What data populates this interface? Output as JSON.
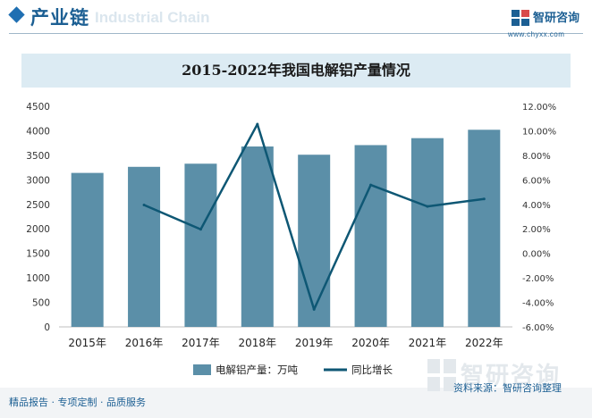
{
  "header": {
    "section_title": "产业链",
    "section_watermark": "Industrial Chain",
    "logo_text": "智研咨询",
    "logo_url": "www.chyxx.com"
  },
  "watermark": {
    "text": "智研咨询"
  },
  "footer": {
    "left_text": "精品报告 · 专项定制 · 品质服务",
    "source_text": "资料来源：智研咨询整理"
  },
  "colors": {
    "bar": "#5b8fa8",
    "line": "#0e5774",
    "title_band": "#dcebf3",
    "accent": "#1c5f93"
  },
  "chart_data": {
    "type": "bar+line",
    "title": "2015-2022年我国电解铝产量情况",
    "categories": [
      "2015年",
      "2016年",
      "2017年",
      "2018年",
      "2019年",
      "2020年",
      "2021年",
      "2022年"
    ],
    "series": [
      {
        "name": "电解铝产量：万吨",
        "type": "bar",
        "axis": "left",
        "values": [
          3141,
          3265,
          3329,
          3680,
          3512,
          3708,
          3850,
          4021
        ]
      },
      {
        "name": "同比增长",
        "type": "line",
        "axis": "right",
        "values": [
          null,
          3.95,
          1.96,
          10.54,
          -4.57,
          5.58,
          3.83,
          4.44
        ]
      }
    ],
    "y_left": {
      "min": 0,
      "max": 4500,
      "step": 500,
      "tick_labels": [
        "0",
        "500",
        "1000",
        "1500",
        "2000",
        "2500",
        "3000",
        "3500",
        "4000",
        "4500"
      ]
    },
    "y_right": {
      "min": -6,
      "max": 12,
      "step": 2,
      "tick_labels": [
        "-6.00%",
        "-4.00%",
        "-2.00%",
        "0.00%",
        "2.00%",
        "4.00%",
        "6.00%",
        "8.00%",
        "10.00%",
        "12.00%"
      ]
    },
    "legend_position": "bottom-center",
    "grid": false
  }
}
